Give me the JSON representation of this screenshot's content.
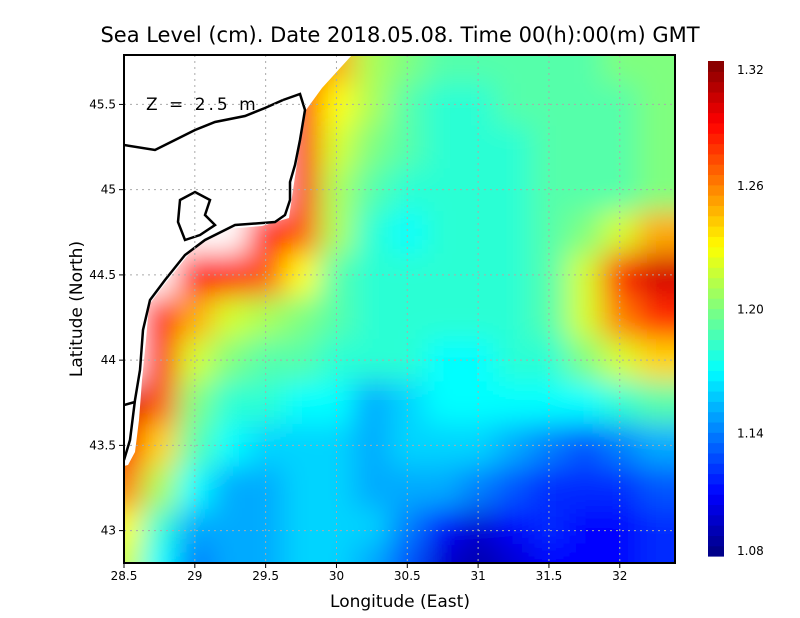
{
  "chart_data": {
    "type": "heatmap",
    "title": "Sea Level (cm). Date 2018.05.08. Time 00(h):00(m) GMT",
    "xlabel": "Longitude (East)",
    "ylabel": "Latitude (North)",
    "annotation": "Z = 2.5 m",
    "xlim": [
      28.5,
      32.39
    ],
    "ylim": [
      42.81,
      45.79
    ],
    "x_ticks": [
      "28.5",
      "29",
      "29.5",
      "30",
      "30.5",
      "31",
      "31.5",
      "32"
    ],
    "x_tick_values": [
      28.5,
      29,
      29.5,
      30,
      30.5,
      31,
      31.5,
      32
    ],
    "y_ticks": [
      "43",
      "43.5",
      "44",
      "44.5",
      "45",
      "45.5"
    ],
    "y_tick_values": [
      43,
      43.5,
      44,
      44.5,
      45,
      45.5
    ],
    "grid": true,
    "colorbar": {
      "range": [
        1.08,
        1.32
      ],
      "tick_labels": [
        "1.32",
        "1.26",
        "1.20",
        "1.14",
        "1.08"
      ],
      "tick_values": [
        1.32,
        1.26,
        1.2,
        1.14,
        1.08
      ],
      "colormap": [
        "#00007f",
        "#0000ff",
        "#007fff",
        "#00ffff",
        "#7fff7f",
        "#ffff00",
        "#ff7f00",
        "#ff0000",
        "#7f0000"
      ]
    },
    "lon": [
      28.5,
      28.75,
      29,
      29.25,
      29.5,
      29.75,
      30,
      30.25,
      30.5,
      30.75,
      31,
      31.25,
      31.5,
      31.75,
      32,
      32.25
    ],
    "lat": [
      45.75,
      45.5,
      45.25,
      45.0,
      44.75,
      44.5,
      44.25,
      44.0,
      43.75,
      43.5,
      43.25,
      43.0,
      42.85
    ],
    "values": [
      [
        null,
        null,
        null,
        null,
        null,
        1.29,
        1.25,
        1.21,
        1.2,
        1.19,
        1.19,
        1.19,
        1.19,
        1.19,
        1.2,
        1.2
      ],
      [
        null,
        null,
        null,
        null,
        null,
        1.29,
        1.23,
        1.21,
        1.19,
        1.18,
        1.18,
        1.19,
        1.19,
        1.19,
        1.19,
        1.2
      ],
      [
        null,
        null,
        null,
        null,
        null,
        1.28,
        1.22,
        1.2,
        1.19,
        1.18,
        1.18,
        1.18,
        1.19,
        1.19,
        1.19,
        1.2
      ],
      [
        null,
        null,
        null,
        null,
        null,
        1.28,
        1.21,
        1.19,
        1.18,
        1.18,
        1.18,
        1.18,
        1.19,
        1.19,
        1.19,
        1.2
      ],
      [
        null,
        null,
        null,
        null,
        1.29,
        1.27,
        1.21,
        1.18,
        1.17,
        1.18,
        1.18,
        1.18,
        1.19,
        1.2,
        1.22,
        1.25
      ],
      [
        null,
        null,
        1.29,
        1.29,
        1.27,
        1.23,
        1.19,
        1.18,
        1.18,
        1.18,
        1.18,
        1.18,
        1.19,
        1.22,
        1.28,
        1.3
      ],
      [
        null,
        1.29,
        1.25,
        1.22,
        1.21,
        1.2,
        1.19,
        1.18,
        1.18,
        1.18,
        1.18,
        1.18,
        1.19,
        1.22,
        1.26,
        1.28
      ],
      [
        null,
        1.29,
        1.22,
        1.2,
        1.19,
        1.19,
        1.18,
        1.18,
        1.18,
        1.17,
        1.17,
        1.18,
        1.18,
        1.2,
        1.22,
        1.24
      ],
      [
        1.3,
        1.27,
        1.2,
        1.18,
        1.18,
        1.17,
        1.17,
        1.15,
        1.16,
        1.17,
        1.17,
        1.17,
        1.17,
        1.17,
        1.18,
        1.19
      ],
      [
        1.29,
        1.24,
        1.19,
        1.17,
        1.16,
        1.16,
        1.16,
        1.15,
        1.16,
        1.16,
        1.16,
        1.15,
        1.14,
        1.13,
        1.14,
        1.15
      ],
      [
        1.26,
        1.21,
        1.17,
        1.15,
        1.15,
        1.16,
        1.16,
        1.15,
        1.15,
        1.15,
        1.14,
        1.13,
        1.12,
        1.12,
        1.12,
        1.13
      ],
      [
        1.23,
        1.18,
        1.15,
        1.15,
        1.15,
        1.16,
        1.16,
        1.16,
        1.14,
        1.11,
        1.1,
        1.11,
        1.12,
        1.11,
        1.11,
        1.12
      ],
      [
        1.22,
        1.17,
        1.14,
        1.15,
        1.15,
        1.16,
        1.16,
        1.15,
        1.13,
        1.1,
        1.09,
        1.1,
        1.11,
        1.11,
        1.11,
        1.12
      ]
    ]
  }
}
